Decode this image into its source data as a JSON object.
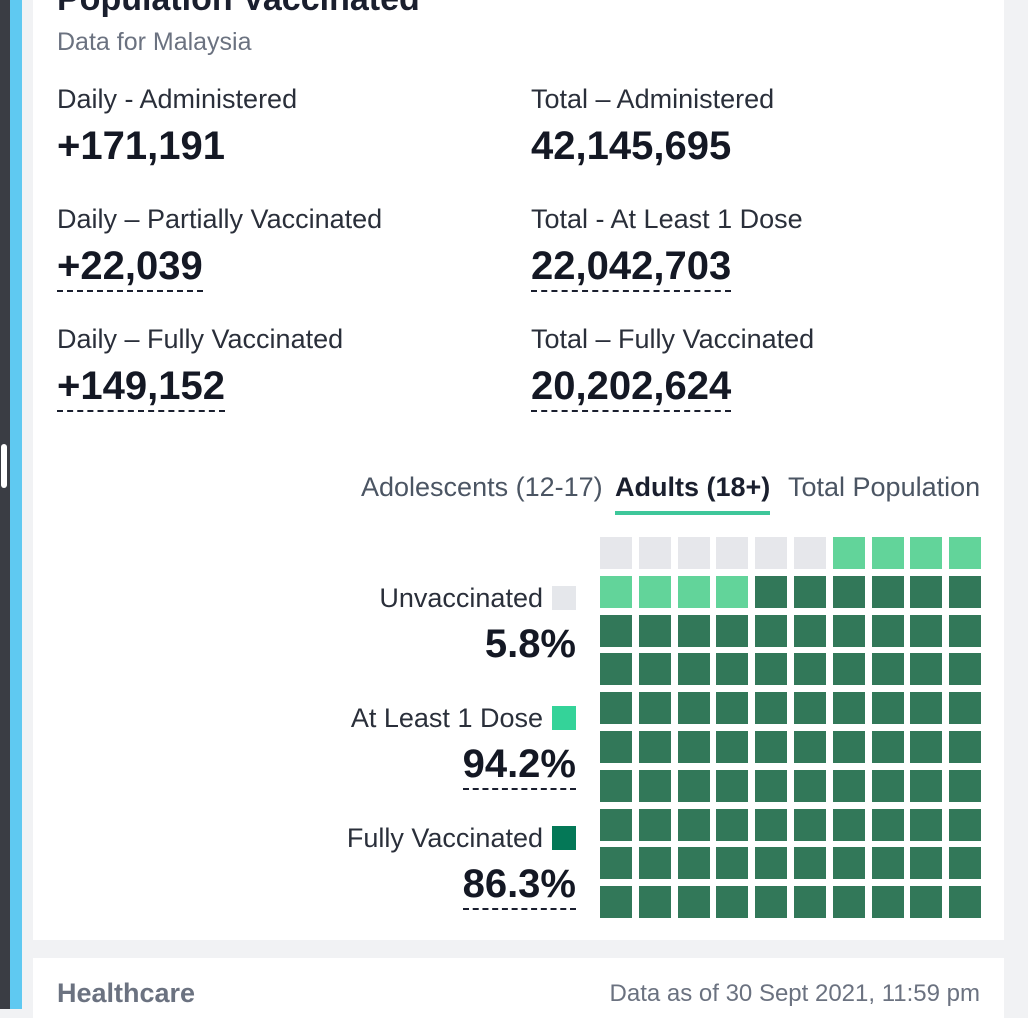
{
  "header": {
    "title": "Population Vaccinated",
    "subtitle": "Data for Malaysia"
  },
  "stats": {
    "daily_administered": {
      "label": "Daily - Administered",
      "value": "+171,191"
    },
    "total_administered": {
      "label": "Total – Administered",
      "value": "42,145,695"
    },
    "daily_partial": {
      "label": "Daily – Partially Vaccinated",
      "value": "+22,039"
    },
    "total_at_least_1": {
      "label": "Total - At Least 1 Dose",
      "value": "22,042,703"
    },
    "daily_fully": {
      "label": "Daily – Fully Vaccinated",
      "value": "+149,152"
    },
    "total_fully": {
      "label": "Total – Fully Vaccinated",
      "value": "20,202,624"
    }
  },
  "tabs": [
    {
      "label": "Adolescents (12-17)",
      "active": false
    },
    {
      "label": "Adults (18+)",
      "active": true
    },
    {
      "label": "Total Population",
      "active": false
    }
  ],
  "legend": {
    "unvaccinated": {
      "label": "Unvaccinated",
      "value": "5.8%",
      "color": "#e5e7eb"
    },
    "at_least_1": {
      "label": "At Least 1 Dose",
      "value": "94.2%",
      "color": "#34d399"
    },
    "fully": {
      "label": "Fully Vaccinated",
      "value": "86.3%",
      "color": "#047857"
    }
  },
  "waffle": {
    "total_cells": 100,
    "fully_cells": 86,
    "partial_cells": 8,
    "unvaccinated_cells": 6,
    "colors": {
      "fully": "#327859",
      "partial": "#62d49a",
      "unvaccinated": "#e6e7eb"
    }
  },
  "healthcare_card": {
    "title": "Healthcare",
    "as_of": "Data as of 30 Sept 2021, 11:59 pm"
  }
}
